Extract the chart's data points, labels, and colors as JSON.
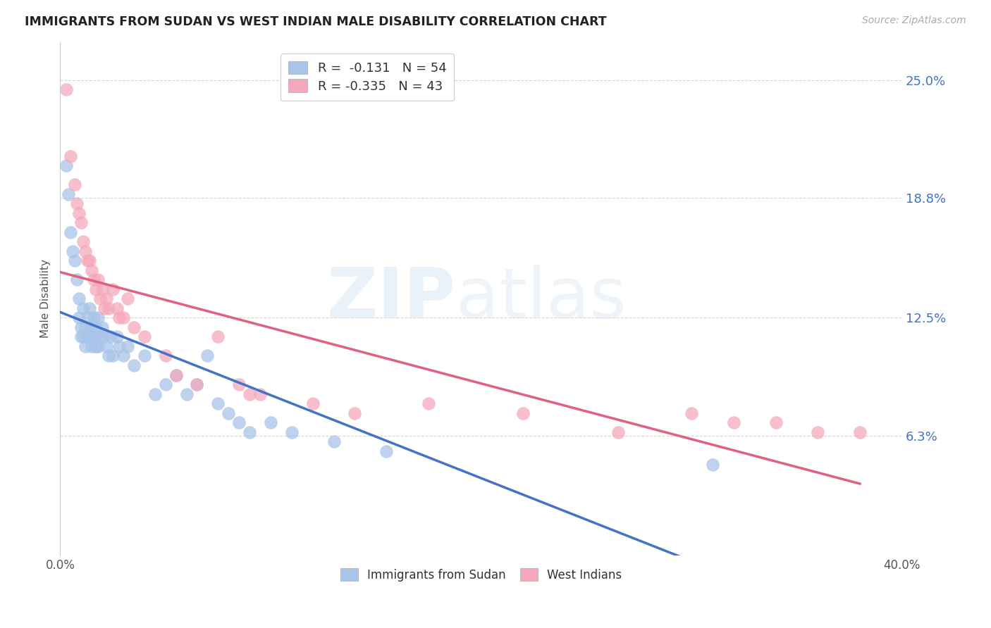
{
  "title": "IMMIGRANTS FROM SUDAN VS WEST INDIAN MALE DISABILITY CORRELATION CHART",
  "source": "Source: ZipAtlas.com",
  "ylabel": "Male Disability",
  "yticks": [
    0.0,
    0.063,
    0.125,
    0.188,
    0.25
  ],
  "ytick_labels": [
    "",
    "6.3%",
    "12.5%",
    "18.8%",
    "25.0%"
  ],
  "xlim": [
    0.0,
    0.4
  ],
  "ylim": [
    0.0,
    0.27
  ],
  "watermark": "ZIPatlas",
  "color_blue": "#a8c4e8",
  "color_pink": "#f5a8bb",
  "color_blue_line": "#4472c4",
  "color_pink_line": "#e06080",
  "color_blue_dash": "#9ab8dc",
  "sudan_x": [
    0.003,
    0.004,
    0.005,
    0.006,
    0.007,
    0.008,
    0.009,
    0.009,
    0.01,
    0.01,
    0.011,
    0.011,
    0.012,
    0.012,
    0.013,
    0.013,
    0.014,
    0.014,
    0.015,
    0.015,
    0.016,
    0.016,
    0.017,
    0.017,
    0.018,
    0.018,
    0.019,
    0.02,
    0.021,
    0.022,
    0.023,
    0.024,
    0.025,
    0.027,
    0.028,
    0.03,
    0.032,
    0.035,
    0.04,
    0.045,
    0.05,
    0.055,
    0.06,
    0.065,
    0.07,
    0.075,
    0.08,
    0.085,
    0.09,
    0.1,
    0.11,
    0.13,
    0.155,
    0.31
  ],
  "sudan_y": [
    0.205,
    0.19,
    0.17,
    0.16,
    0.155,
    0.145,
    0.135,
    0.125,
    0.12,
    0.115,
    0.13,
    0.115,
    0.12,
    0.11,
    0.125,
    0.115,
    0.13,
    0.115,
    0.12,
    0.11,
    0.125,
    0.115,
    0.12,
    0.11,
    0.125,
    0.11,
    0.115,
    0.12,
    0.115,
    0.11,
    0.105,
    0.115,
    0.105,
    0.115,
    0.11,
    0.105,
    0.11,
    0.1,
    0.105,
    0.085,
    0.09,
    0.095,
    0.085,
    0.09,
    0.105,
    0.08,
    0.075,
    0.07,
    0.065,
    0.07,
    0.065,
    0.06,
    0.055,
    0.048
  ],
  "westindian_x": [
    0.003,
    0.005,
    0.007,
    0.008,
    0.009,
    0.01,
    0.011,
    0.012,
    0.013,
    0.014,
    0.015,
    0.016,
    0.017,
    0.018,
    0.019,
    0.02,
    0.021,
    0.022,
    0.023,
    0.025,
    0.027,
    0.028,
    0.03,
    0.032,
    0.035,
    0.04,
    0.05,
    0.055,
    0.065,
    0.075,
    0.085,
    0.09,
    0.095,
    0.12,
    0.14,
    0.175,
    0.22,
    0.265,
    0.3,
    0.32,
    0.34,
    0.36,
    0.38
  ],
  "westindian_y": [
    0.245,
    0.21,
    0.195,
    0.185,
    0.18,
    0.175,
    0.165,
    0.16,
    0.155,
    0.155,
    0.15,
    0.145,
    0.14,
    0.145,
    0.135,
    0.14,
    0.13,
    0.135,
    0.13,
    0.14,
    0.13,
    0.125,
    0.125,
    0.135,
    0.12,
    0.115,
    0.105,
    0.095,
    0.09,
    0.115,
    0.09,
    0.085,
    0.085,
    0.08,
    0.075,
    0.08,
    0.075,
    0.065,
    0.075,
    0.07,
    0.07,
    0.065,
    0.065
  ]
}
